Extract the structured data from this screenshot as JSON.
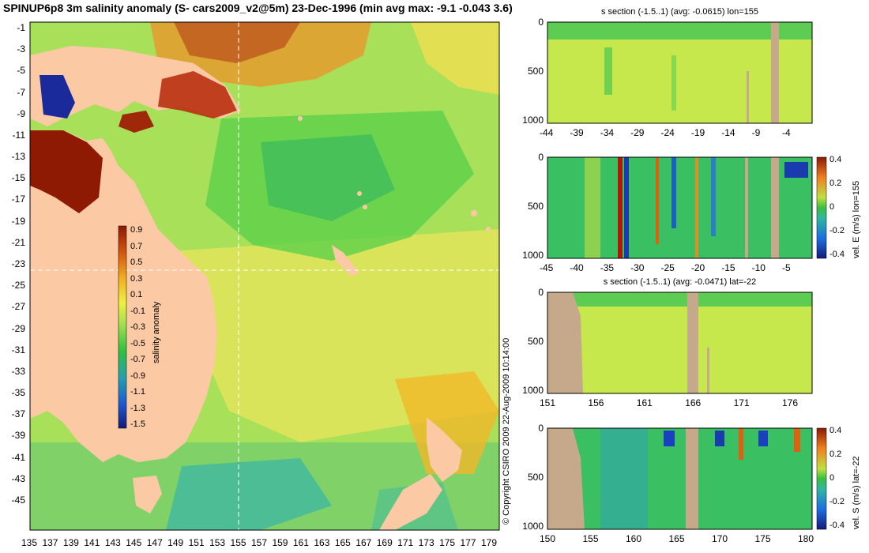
{
  "title": "SPINUP6p8 3m salinity anomaly (S- cars2009_v2@5m) 23-Dec-1996 (min avg max: -9.1 -0.043 3.6)",
  "copyright": "© Copyright CSIRO 2009   22-Aug-2009 10:14:00",
  "map": {
    "lat_labels": [
      "-1",
      "-3",
      "-5",
      "-7",
      "-9",
      "-11",
      "-13",
      "-15",
      "-17",
      "-19",
      "-21",
      "-23",
      "-25",
      "-27",
      "-29",
      "-31",
      "-33",
      "-35",
      "-37",
      "-39",
      "-41",
      "-43",
      "-45"
    ],
    "lon_labels": [
      "135",
      "137",
      "139",
      "141",
      "143",
      "145",
      "147",
      "149",
      "151",
      "153",
      "155",
      "157",
      "159",
      "161",
      "163",
      "165",
      "167",
      "169",
      "171",
      "173",
      "175",
      "177",
      "179"
    ],
    "section_lon": 155,
    "section_lat": -22,
    "colorbar": {
      "label": "salinity anomaly",
      "ticks": [
        "0.9",
        "0.7",
        "0.5",
        "0.3",
        "0.1",
        "-0.1",
        "-0.3",
        "-0.5",
        "-0.7",
        "-0.9",
        "-1.1",
        "-1.3",
        "-1.5"
      ]
    },
    "colors": {
      "land": "#fbc9a4",
      "ocean": "#a8e05a",
      "warm": "#d95a10",
      "hot": "#8e1a04",
      "cool": "#2aa08c",
      "cold": "#1a2a9a"
    }
  },
  "panels": [
    {
      "id": "s-lon",
      "title": "s section (-1.5..1) (avg: -0.0615) lon=155",
      "y_ticks": [
        "0",
        "500",
        "1000"
      ],
      "x_ticks": [
        "-44",
        "-39",
        "-34",
        "-29",
        "-24",
        "-19",
        "-14",
        "-9",
        "-4"
      ],
      "colorbar": null
    },
    {
      "id": "ve-lon",
      "title": "",
      "y_ticks": [
        "0",
        "500",
        "1000"
      ],
      "x_ticks": [
        "-45",
        "-40",
        "-35",
        "-30",
        "-25",
        "-20",
        "-15",
        "-10",
        "-5"
      ],
      "colorbar": {
        "label": "vel. E (m/s) lon=155",
        "ticks": [
          "0.4",
          "0.2",
          "0",
          "-0.2",
          "-0.4"
        ]
      }
    },
    {
      "id": "s-lat",
      "title": "s section (-1.5..1) (avg: -0.0471) lat=-22",
      "y_ticks": [
        "0",
        "500",
        "1000"
      ],
      "x_ticks": [
        "151",
        "156",
        "161",
        "166",
        "171",
        "176"
      ],
      "colorbar": null
    },
    {
      "id": "vs-lat",
      "title": "",
      "y_ticks": [
        "0",
        "500",
        "1000"
      ],
      "x_ticks": [
        "150",
        "155",
        "160",
        "165",
        "170",
        "175",
        "180"
      ],
      "colorbar": {
        "label": "vel. S (m/s) lat=-22",
        "ticks": [
          "0.4",
          "0.2",
          "0",
          "-0.2",
          "-0.4"
        ]
      }
    }
  ]
}
